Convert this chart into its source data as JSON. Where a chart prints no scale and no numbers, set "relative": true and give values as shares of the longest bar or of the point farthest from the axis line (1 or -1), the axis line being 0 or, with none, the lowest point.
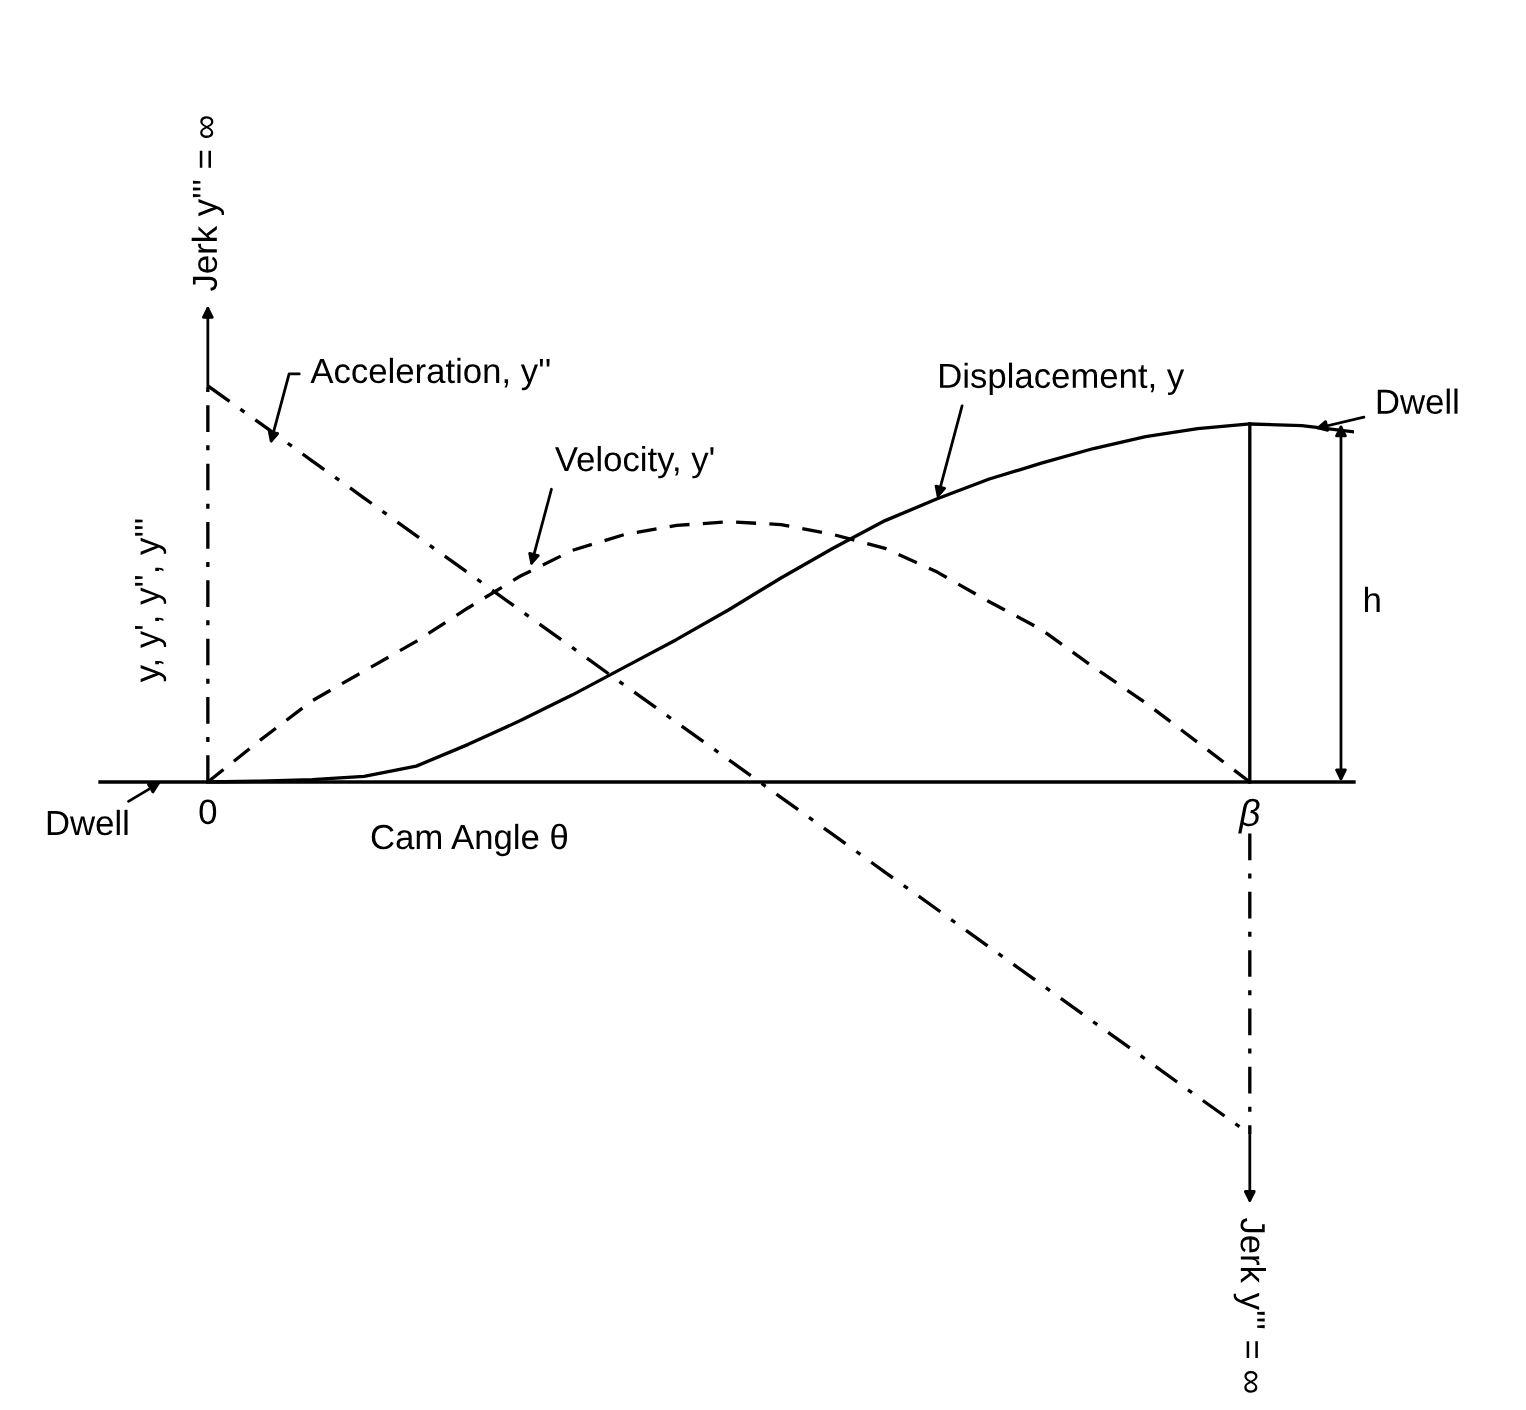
{
  "chart_data": {
    "type": "line",
    "relative": true,
    "xlabel": "Cam Angle θ",
    "ylabel": "y, y', y'', y'''",
    "categories": [
      "0",
      null,
      null,
      null,
      null,
      null,
      null,
      null,
      null,
      null,
      null,
      null,
      null,
      null,
      null,
      null,
      null,
      null,
      null,
      null,
      "β",
      null,
      null
    ],
    "series": [
      {
        "color": "#000000",
        "line_style": "solid",
        "values": [
          0,
          0.002,
          0.006,
          0.014,
          0.04,
          0.095,
          0.155,
          0.22,
          0.29,
          0.36,
          0.435,
          0.515,
          0.59,
          0.66,
          0.715,
          0.765,
          0.805,
          0.842,
          0.872,
          0.892,
          0.904,
          0.9,
          0.884
        ]
      },
      {
        "color": "#000000",
        "line_style": "dashed",
        "values": [
          0,
          0.105,
          0.205,
          0.28,
          0.355,
          0.44,
          0.52,
          0.585,
          0.625,
          0.648,
          0.657,
          0.65,
          0.625,
          0.59,
          0.53,
          0.455,
          0.385,
          0.29,
          0.2,
          0.1,
          0,
          null,
          null
        ]
      },
      {
        "color": "#000000",
        "line_style": "dashdot",
        "values": [
          1,
          0.906,
          0.811,
          0.717,
          0.622,
          0.528,
          0.433,
          0.339,
          0.244,
          0.15,
          0.056,
          -0.039,
          -0.133,
          -0.228,
          -0.322,
          -0.417,
          -0.511,
          -0.606,
          -0.7,
          -0.795,
          -0.889,
          null,
          null
        ]
      }
    ],
    "annotations": [
      "Acceleration, y''",
      "Velocity, y'",
      "Displacement, y",
      "Dwell",
      "Dwell",
      "h",
      "Jerk y''' = ∞",
      "Jerk y''' = ∞"
    ]
  }
}
